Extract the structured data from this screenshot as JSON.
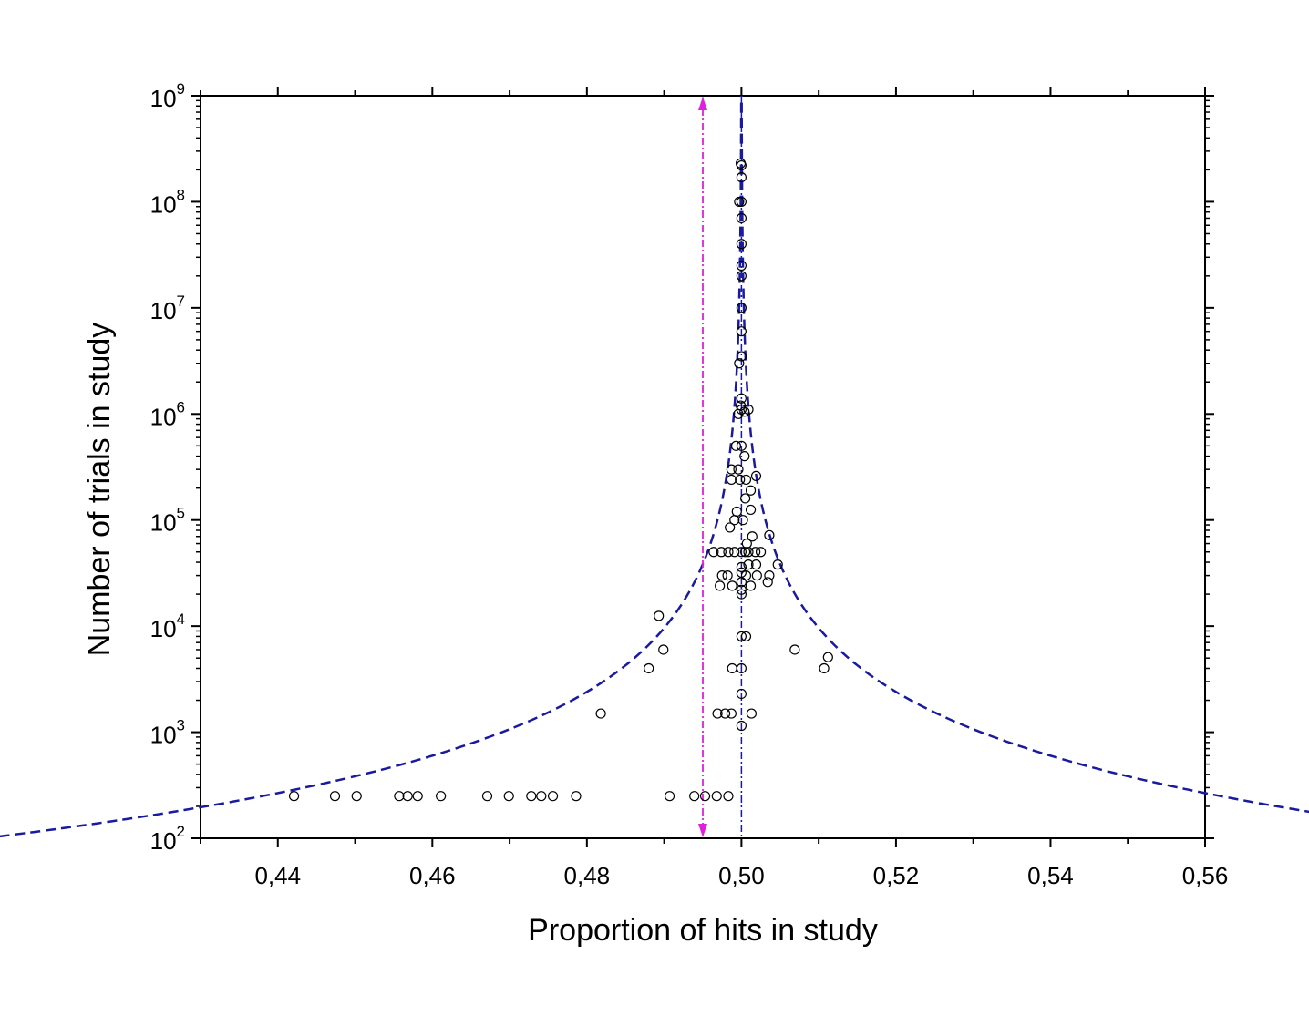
{
  "chart_data": {
    "type": "scatter",
    "title": "",
    "xlabel": "Proportion of hits in study",
    "ylabel": "Number of trials in study",
    "xlim": [
      0.43,
      0.56
    ],
    "ylim": [
      100,
      1000000000
    ],
    "yscale": "log",
    "xticks": [
      0.44,
      0.46,
      0.48,
      0.5,
      0.52,
      0.54,
      0.56
    ],
    "xtick_labels": [
      "0,44",
      "0,46",
      "0,48",
      "0,50",
      "0,52",
      "0,54",
      "0,56"
    ],
    "yticks": [
      {
        "value": 100,
        "base": "10",
        "exp": "2"
      },
      {
        "value": 1000,
        "base": "10",
        "exp": "3"
      },
      {
        "value": 10000,
        "base": "10",
        "exp": "4"
      },
      {
        "value": 100000,
        "base": "10",
        "exp": "5"
      },
      {
        "value": 1000000,
        "base": "10",
        "exp": "6"
      },
      {
        "value": 10000000,
        "base": "10",
        "exp": "7"
      },
      {
        "value": 100000000,
        "base": "10",
        "exp": "8"
      },
      {
        "value": 1000000000,
        "base": "10",
        "exp": "9"
      }
    ],
    "grid": false,
    "reference_lines": [
      {
        "name": "chance-line",
        "x": 0.5,
        "style": "dash-dot",
        "color": "#1a1aa0"
      },
      {
        "name": "combined-estimate-arrow",
        "x": 0.495,
        "style": "dash-dot-arrow",
        "color": "#e020e0"
      }
    ],
    "funnel": {
      "center": 0.5,
      "z": 1.96,
      "style": "dashed",
      "color": "#1a1aa0"
    },
    "series": [
      {
        "name": "studies",
        "marker": "open-circle",
        "points": [
          [
            0.4421,
            250
          ],
          [
            0.4474,
            250
          ],
          [
            0.4502,
            250
          ],
          [
            0.4557,
            250
          ],
          [
            0.4568,
            250
          ],
          [
            0.4581,
            250
          ],
          [
            0.4611,
            250
          ],
          [
            0.4671,
            250
          ],
          [
            0.4699,
            250
          ],
          [
            0.4728,
            250
          ],
          [
            0.4741,
            250
          ],
          [
            0.4756,
            250
          ],
          [
            0.4786,
            250
          ],
          [
            0.4907,
            250
          ],
          [
            0.4939,
            250
          ],
          [
            0.4953,
            250
          ],
          [
            0.4968,
            250
          ],
          [
            0.4983,
            250
          ],
          [
            0.4818,
            1500
          ],
          [
            0.4969,
            1500
          ],
          [
            0.4979,
            1500
          ],
          [
            0.4987,
            1500
          ],
          [
            0.5013,
            1500
          ],
          [
            0.5,
            1150
          ],
          [
            0.5,
            2300
          ],
          [
            0.488,
            4000
          ],
          [
            0.4988,
            4000
          ],
          [
            0.5,
            4000
          ],
          [
            0.5107,
            4000
          ],
          [
            0.4899,
            6000
          ],
          [
            0.5069,
            6000
          ],
          [
            0.5112,
            5100
          ],
          [
            0.4893,
            12500
          ],
          [
            0.5,
            8000
          ],
          [
            0.5006,
            8000
          ],
          [
            0.4972,
            24000
          ],
          [
            0.4988,
            24000
          ],
          [
            0.5,
            20000
          ],
          [
            0.5,
            22000
          ],
          [
            0.5,
            26000
          ],
          [
            0.5012,
            24000
          ],
          [
            0.5034,
            26000
          ],
          [
            0.4975,
            30000
          ],
          [
            0.4982,
            30000
          ],
          [
            0.5,
            32000
          ],
          [
            0.5006,
            30000
          ],
          [
            0.502,
            30000
          ],
          [
            0.5036,
            30000
          ],
          [
            0.5,
            36000
          ],
          [
            0.5009,
            38000
          ],
          [
            0.5019,
            38000
          ],
          [
            0.5047,
            38000
          ],
          [
            0.4964,
            50000
          ],
          [
            0.4974,
            50000
          ],
          [
            0.4983,
            50000
          ],
          [
            0.4991,
            50000
          ],
          [
            0.5,
            50000
          ],
          [
            0.5005,
            50000
          ],
          [
            0.5009,
            50000
          ],
          [
            0.5018,
            50000
          ],
          [
            0.5025,
            50000
          ],
          [
            0.5007,
            60000
          ],
          [
            0.5014,
            70000
          ],
          [
            0.5036,
            72000
          ],
          [
            0.4985,
            85000
          ],
          [
            0.4991,
            100000
          ],
          [
            0.5002,
            100000
          ],
          [
            0.4994,
            120000
          ],
          [
            0.5012,
            125000
          ],
          [
            0.5005,
            160000
          ],
          [
            0.5012,
            190000
          ],
          [
            0.4987,
            240000
          ],
          [
            0.4998,
            240000
          ],
          [
            0.5006,
            240000
          ],
          [
            0.5019,
            260000
          ],
          [
            0.4987,
            300000
          ],
          [
            0.4996,
            300000
          ],
          [
            0.5004,
            400000
          ],
          [
            0.4993,
            500000
          ],
          [
            0.5,
            500000
          ],
          [
            0.4996,
            1000000
          ],
          [
            0.5004,
            1050000
          ],
          [
            0.5,
            1100000
          ],
          [
            0.4999,
            1200000
          ],
          [
            0.5009,
            1100000
          ],
          [
            0.5,
            1400000
          ],
          [
            0.4997,
            3000000
          ],
          [
            0.5,
            3500000
          ],
          [
            0.5,
            6000000
          ],
          [
            0.5,
            10000000
          ],
          [
            0.5,
            20000000
          ],
          [
            0.5,
            25000000
          ],
          [
            0.5,
            40000000
          ],
          [
            0.5,
            70000000
          ],
          [
            0.4997,
            100000000
          ],
          [
            0.5,
            100000000
          ],
          [
            0.5,
            170000000
          ],
          [
            0.5,
            220000000
          ],
          [
            0.4999,
            230000000
          ]
        ]
      }
    ]
  }
}
